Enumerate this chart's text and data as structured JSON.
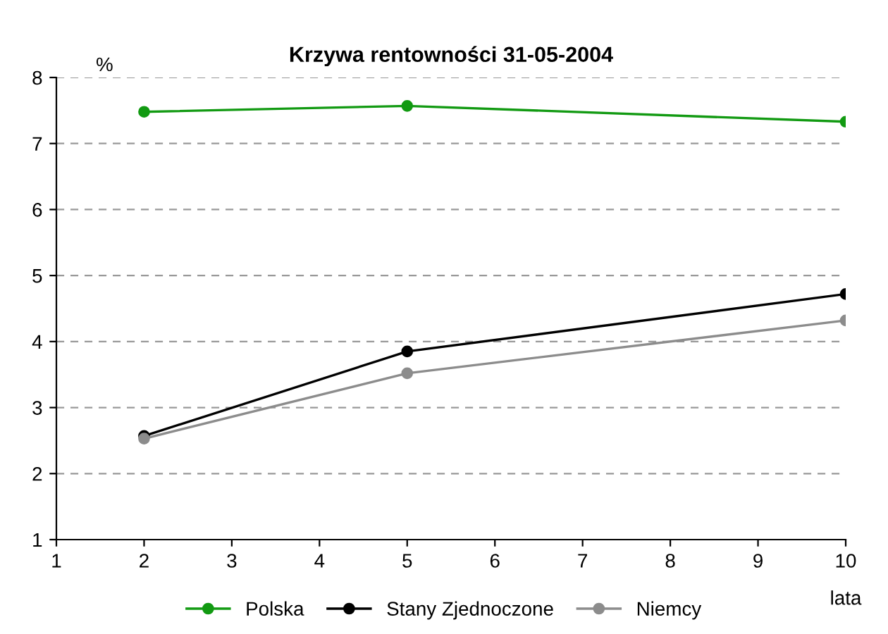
{
  "chart_data": {
    "type": "line",
    "title": "Krzywa rentowności 31-05-2004",
    "ylabel": "%",
    "xlabel": "lata",
    "x": [
      2,
      5,
      10
    ],
    "series": [
      {
        "name": "Polska",
        "color": "#129a12",
        "values": [
          7.48,
          7.57,
          7.33
        ]
      },
      {
        "name": "Stany Zjednoczone",
        "color": "#000000",
        "values": [
          2.57,
          3.85,
          4.72
        ]
      },
      {
        "name": "Niemcy",
        "color": "#8c8c8c",
        "values": [
          2.53,
          3.52,
          4.32
        ]
      }
    ],
    "xlim": [
      1,
      10
    ],
    "xticks": [
      1,
      2,
      3,
      4,
      5,
      6,
      7,
      8,
      9,
      10
    ],
    "ylim": [
      1,
      8
    ],
    "yticks": [
      1,
      2,
      3,
      4,
      5,
      6,
      7,
      8
    ],
    "grid": "y",
    "legend": "bottom",
    "marker": "circle",
    "line_style": "solid"
  }
}
